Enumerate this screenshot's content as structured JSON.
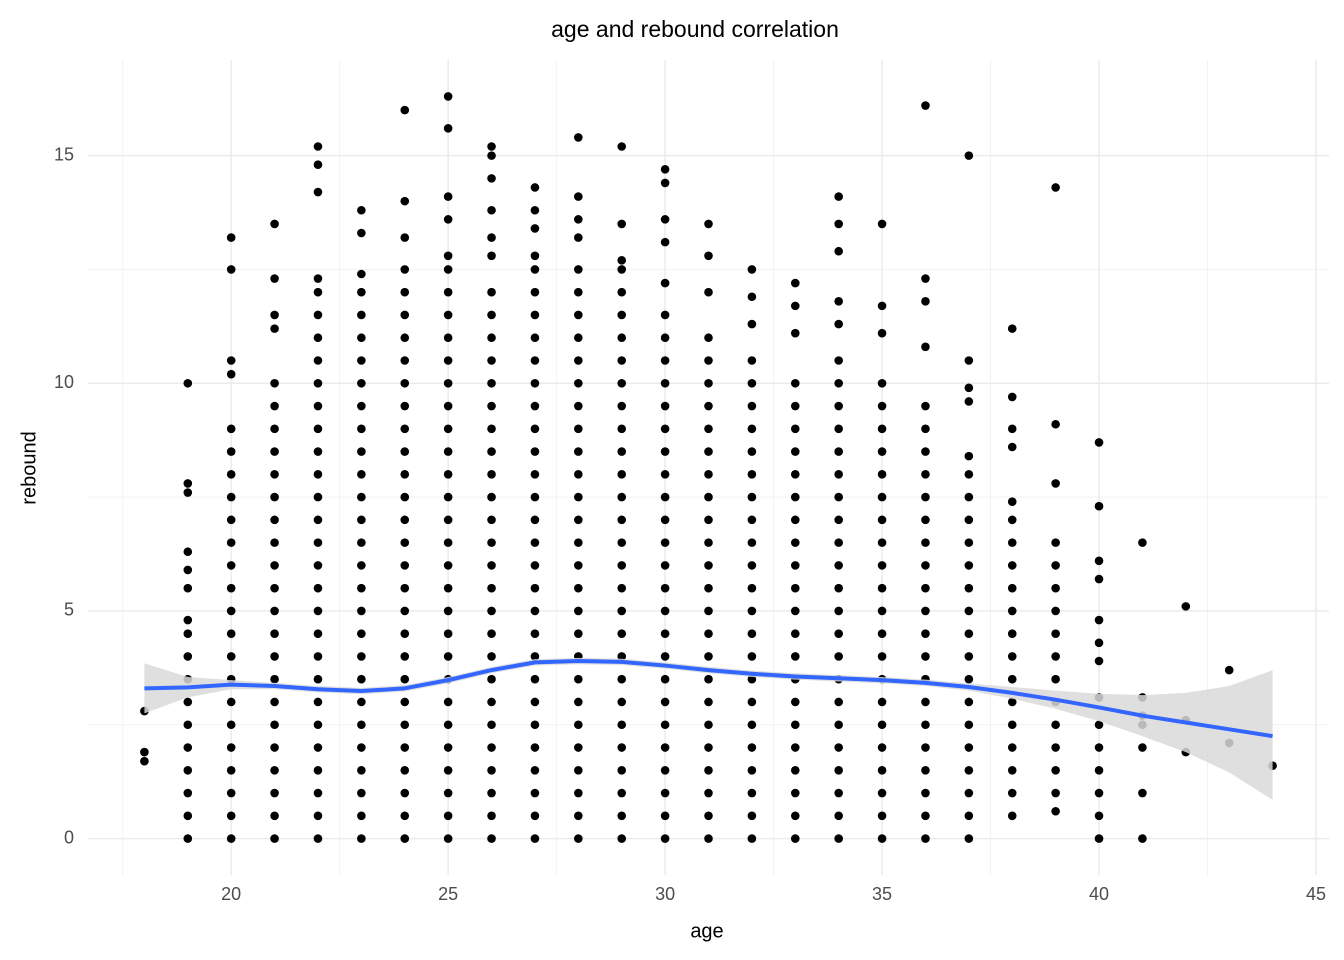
{
  "chart_data": {
    "type": "scatter",
    "title": "age and rebound correlation",
    "x_label": "age",
    "y_label": "rebound",
    "x": [
      18,
      19,
      20,
      21,
      22,
      23,
      24,
      25,
      26,
      27,
      28,
      29,
      30,
      31,
      32,
      33,
      34,
      35,
      36,
      37,
      38,
      39,
      40,
      41,
      42,
      43,
      44
    ],
    "values": [
      [
        1.7,
        1.9,
        2.8
      ],
      [
        0,
        0.5,
        1,
        1.5,
        2,
        2.5,
        3,
        3.5,
        4,
        4.5,
        4.8,
        5.5,
        5.9,
        6.3,
        7.6,
        7.8,
        10
      ],
      [
        0,
        0.5,
        1,
        1.5,
        2,
        2.5,
        3,
        3.5,
        4,
        4.5,
        5,
        5.5,
        6,
        6.5,
        7,
        7.5,
        8,
        8.5,
        9,
        10.2,
        10.5,
        12.5,
        13.2
      ],
      [
        0,
        0.5,
        1,
        1.5,
        2,
        2.5,
        3,
        3.5,
        4,
        4.5,
        5,
        5.5,
        6,
        6.5,
        7,
        7.5,
        8,
        8.5,
        9,
        9.5,
        10,
        11.2,
        11.5,
        12.3,
        13.5
      ],
      [
        0,
        0.5,
        1,
        1.5,
        2,
        2.5,
        3,
        3.5,
        4,
        4.5,
        5,
        5.5,
        6,
        6.5,
        7,
        7.5,
        8,
        8.5,
        9,
        9.5,
        10,
        10.5,
        11,
        11.5,
        12,
        12.3,
        14.2,
        14.8,
        15.2
      ],
      [
        0,
        0.5,
        1,
        1.5,
        2,
        2.5,
        3,
        3.5,
        4,
        4.5,
        5,
        5.5,
        6,
        6.5,
        7,
        7.5,
        8,
        8.5,
        9,
        9.5,
        10,
        10.5,
        11,
        11.5,
        12,
        12.4,
        13.3,
        13.8
      ],
      [
        0,
        0.5,
        1,
        1.5,
        2,
        2.5,
        3,
        3.5,
        4,
        4.5,
        5,
        5.5,
        6,
        6.5,
        7,
        7.5,
        8,
        8.5,
        9,
        9.5,
        10,
        10.5,
        11,
        11.5,
        12,
        12.5,
        13.2,
        14,
        16
      ],
      [
        0,
        0.5,
        1,
        1.5,
        2,
        2.5,
        3,
        3.5,
        4,
        4.5,
        5,
        5.5,
        6,
        6.5,
        7,
        7.5,
        8,
        8.5,
        9,
        9.5,
        10,
        10.5,
        11,
        11.5,
        12,
        12.5,
        12.8,
        13.6,
        14.1,
        15.6,
        16.3
      ],
      [
        0,
        0.5,
        1,
        1.5,
        2,
        2.5,
        3,
        3.5,
        4,
        4.5,
        5,
        5.5,
        6,
        6.5,
        7,
        7.5,
        8,
        8.5,
        9,
        9.5,
        10,
        10.5,
        11,
        11.5,
        12,
        12.8,
        13.2,
        13.8,
        14.5,
        15,
        15.2
      ],
      [
        0,
        0.5,
        1,
        1.5,
        2,
        2.5,
        3,
        3.5,
        4,
        4.5,
        5,
        5.5,
        6,
        6.5,
        7,
        7.5,
        8,
        8.5,
        9,
        9.5,
        10,
        10.5,
        11,
        11.5,
        12,
        12.5,
        12.8,
        13.4,
        13.8,
        14.3
      ],
      [
        0,
        0.5,
        1,
        1.5,
        2,
        2.5,
        3,
        3.5,
        4,
        4.5,
        5,
        5.5,
        6,
        6.5,
        7,
        7.5,
        8,
        8.5,
        9,
        9.5,
        10,
        10.5,
        11,
        11.5,
        12,
        12.5,
        13.2,
        13.6,
        14.1,
        15.4
      ],
      [
        0,
        0.5,
        1,
        1.5,
        2,
        2.5,
        3,
        3.5,
        4,
        4.5,
        5,
        5.5,
        6,
        6.5,
        7,
        7.5,
        8,
        8.5,
        9,
        9.5,
        10,
        10.5,
        11,
        11.5,
        12,
        12.5,
        12.7,
        13.5,
        15.2
      ],
      [
        0,
        0.5,
        1,
        1.5,
        2,
        2.5,
        3,
        3.5,
        4,
        4.5,
        5,
        5.5,
        6,
        6.5,
        7,
        7.5,
        8,
        8.5,
        9,
        9.5,
        10,
        10.5,
        11,
        11.5,
        12.2,
        13.1,
        13.6,
        14.4,
        14.7
      ],
      [
        0,
        0.5,
        1,
        1.5,
        2,
        2.5,
        3,
        3.5,
        4,
        4.5,
        5,
        5.5,
        6,
        6.5,
        7,
        7.5,
        8,
        8.5,
        9,
        9.5,
        10,
        10.5,
        11,
        12,
        12.8,
        13.5
      ],
      [
        0,
        0.5,
        1,
        1.5,
        2,
        2.5,
        3,
        3.5,
        4,
        4.5,
        5,
        5.5,
        6,
        6.5,
        7,
        7.5,
        8,
        8.5,
        9,
        9.5,
        10,
        10.5,
        11.3,
        11.9,
        12.5
      ],
      [
        0,
        0.5,
        1,
        1.5,
        2,
        2.5,
        3,
        3.5,
        4,
        4.5,
        5,
        5.5,
        6,
        6.5,
        7,
        7.5,
        8,
        8.5,
        9,
        9.5,
        10,
        11.1,
        11.7,
        12.2
      ],
      [
        0,
        0.5,
        1,
        1.5,
        2,
        2.5,
        3,
        3.5,
        4,
        4.5,
        5,
        5.5,
        6,
        6.5,
        7,
        7.5,
        8,
        8.5,
        9,
        9.5,
        10,
        10.5,
        11.3,
        11.8,
        12.9,
        13.5,
        14.1
      ],
      [
        0,
        0.5,
        1,
        1.5,
        2,
        2.5,
        3,
        3.5,
        4,
        4.5,
        5,
        5.5,
        6,
        6.5,
        7,
        7.5,
        8,
        8.5,
        9,
        9.5,
        10,
        11.1,
        11.7,
        13.5
      ],
      [
        0,
        0.5,
        1,
        1.5,
        2,
        2.5,
        3,
        3.5,
        4,
        4.5,
        5,
        5.5,
        6,
        6.5,
        7,
        7.5,
        8,
        8.5,
        9,
        9.5,
        10.8,
        11.8,
        12.3,
        16.1
      ],
      [
        0,
        0.5,
        1,
        1.5,
        2,
        2.5,
        3,
        3.5,
        4,
        4.5,
        5,
        5.5,
        6,
        6.5,
        7,
        7.5,
        8,
        8.4,
        9.6,
        9.9,
        10.5,
        15
      ],
      [
        0.5,
        1,
        1.5,
        2,
        2.5,
        3,
        3.5,
        4,
        4.5,
        5,
        5.5,
        6,
        6.5,
        7,
        7.4,
        8.6,
        9,
        9.7,
        11.2
      ],
      [
        0.6,
        1,
        1.5,
        2,
        2.5,
        3,
        3.5,
        4,
        4.5,
        5,
        5.5,
        6,
        6.5,
        7.8,
        9.1,
        14.3
      ],
      [
        0,
        0.5,
        1,
        1.5,
        2,
        2.5,
        3.1,
        3.9,
        4.3,
        4.8,
        5.7,
        6.1,
        7.3,
        8.7
      ],
      [
        0,
        1,
        2,
        2.5,
        2.7,
        3.1,
        6.5
      ],
      [
        1.9,
        2.6,
        5.1
      ],
      [
        2.1,
        3.7
      ],
      [
        1.6
      ]
    ],
    "color": "#000000",
    "smooth": {
      "color": "#3366ff",
      "band_color": "#d9d9d9",
      "x": [
        18,
        19,
        20,
        21,
        22,
        23,
        24,
        25,
        26,
        27,
        28,
        29,
        30,
        31,
        32,
        33,
        34,
        35,
        36,
        37,
        38,
        39,
        40,
        41,
        42,
        43,
        44
      ],
      "y": [
        3.3,
        3.32,
        3.38,
        3.35,
        3.28,
        3.24,
        3.3,
        3.48,
        3.7,
        3.87,
        3.9,
        3.88,
        3.8,
        3.7,
        3.62,
        3.56,
        3.52,
        3.48,
        3.42,
        3.33,
        3.2,
        3.05,
        2.88,
        2.7,
        2.55,
        2.4,
        2.25
      ],
      "lower": [
        2.75,
        3.1,
        3.28,
        3.28,
        3.21,
        3.17,
        3.23,
        3.41,
        3.63,
        3.8,
        3.83,
        3.81,
        3.73,
        3.63,
        3.55,
        3.49,
        3.45,
        3.41,
        3.35,
        3.25,
        3.07,
        2.85,
        2.58,
        2.25,
        1.9,
        1.45,
        0.85
      ],
      "upper": [
        3.85,
        3.55,
        3.48,
        3.42,
        3.35,
        3.31,
        3.37,
        3.55,
        3.77,
        3.94,
        3.97,
        3.95,
        3.87,
        3.77,
        3.69,
        3.63,
        3.59,
        3.55,
        3.49,
        3.41,
        3.33,
        3.25,
        3.18,
        3.15,
        3.2,
        3.35,
        3.7
      ]
    },
    "xlim": [
      16.7,
      45.3
    ],
    "ylim": [
      -0.8,
      17.1
    ],
    "xticks": [
      20,
      25,
      30,
      35,
      40,
      45
    ],
    "yticks": [
      0,
      5,
      10,
      15
    ],
    "grid": true
  }
}
